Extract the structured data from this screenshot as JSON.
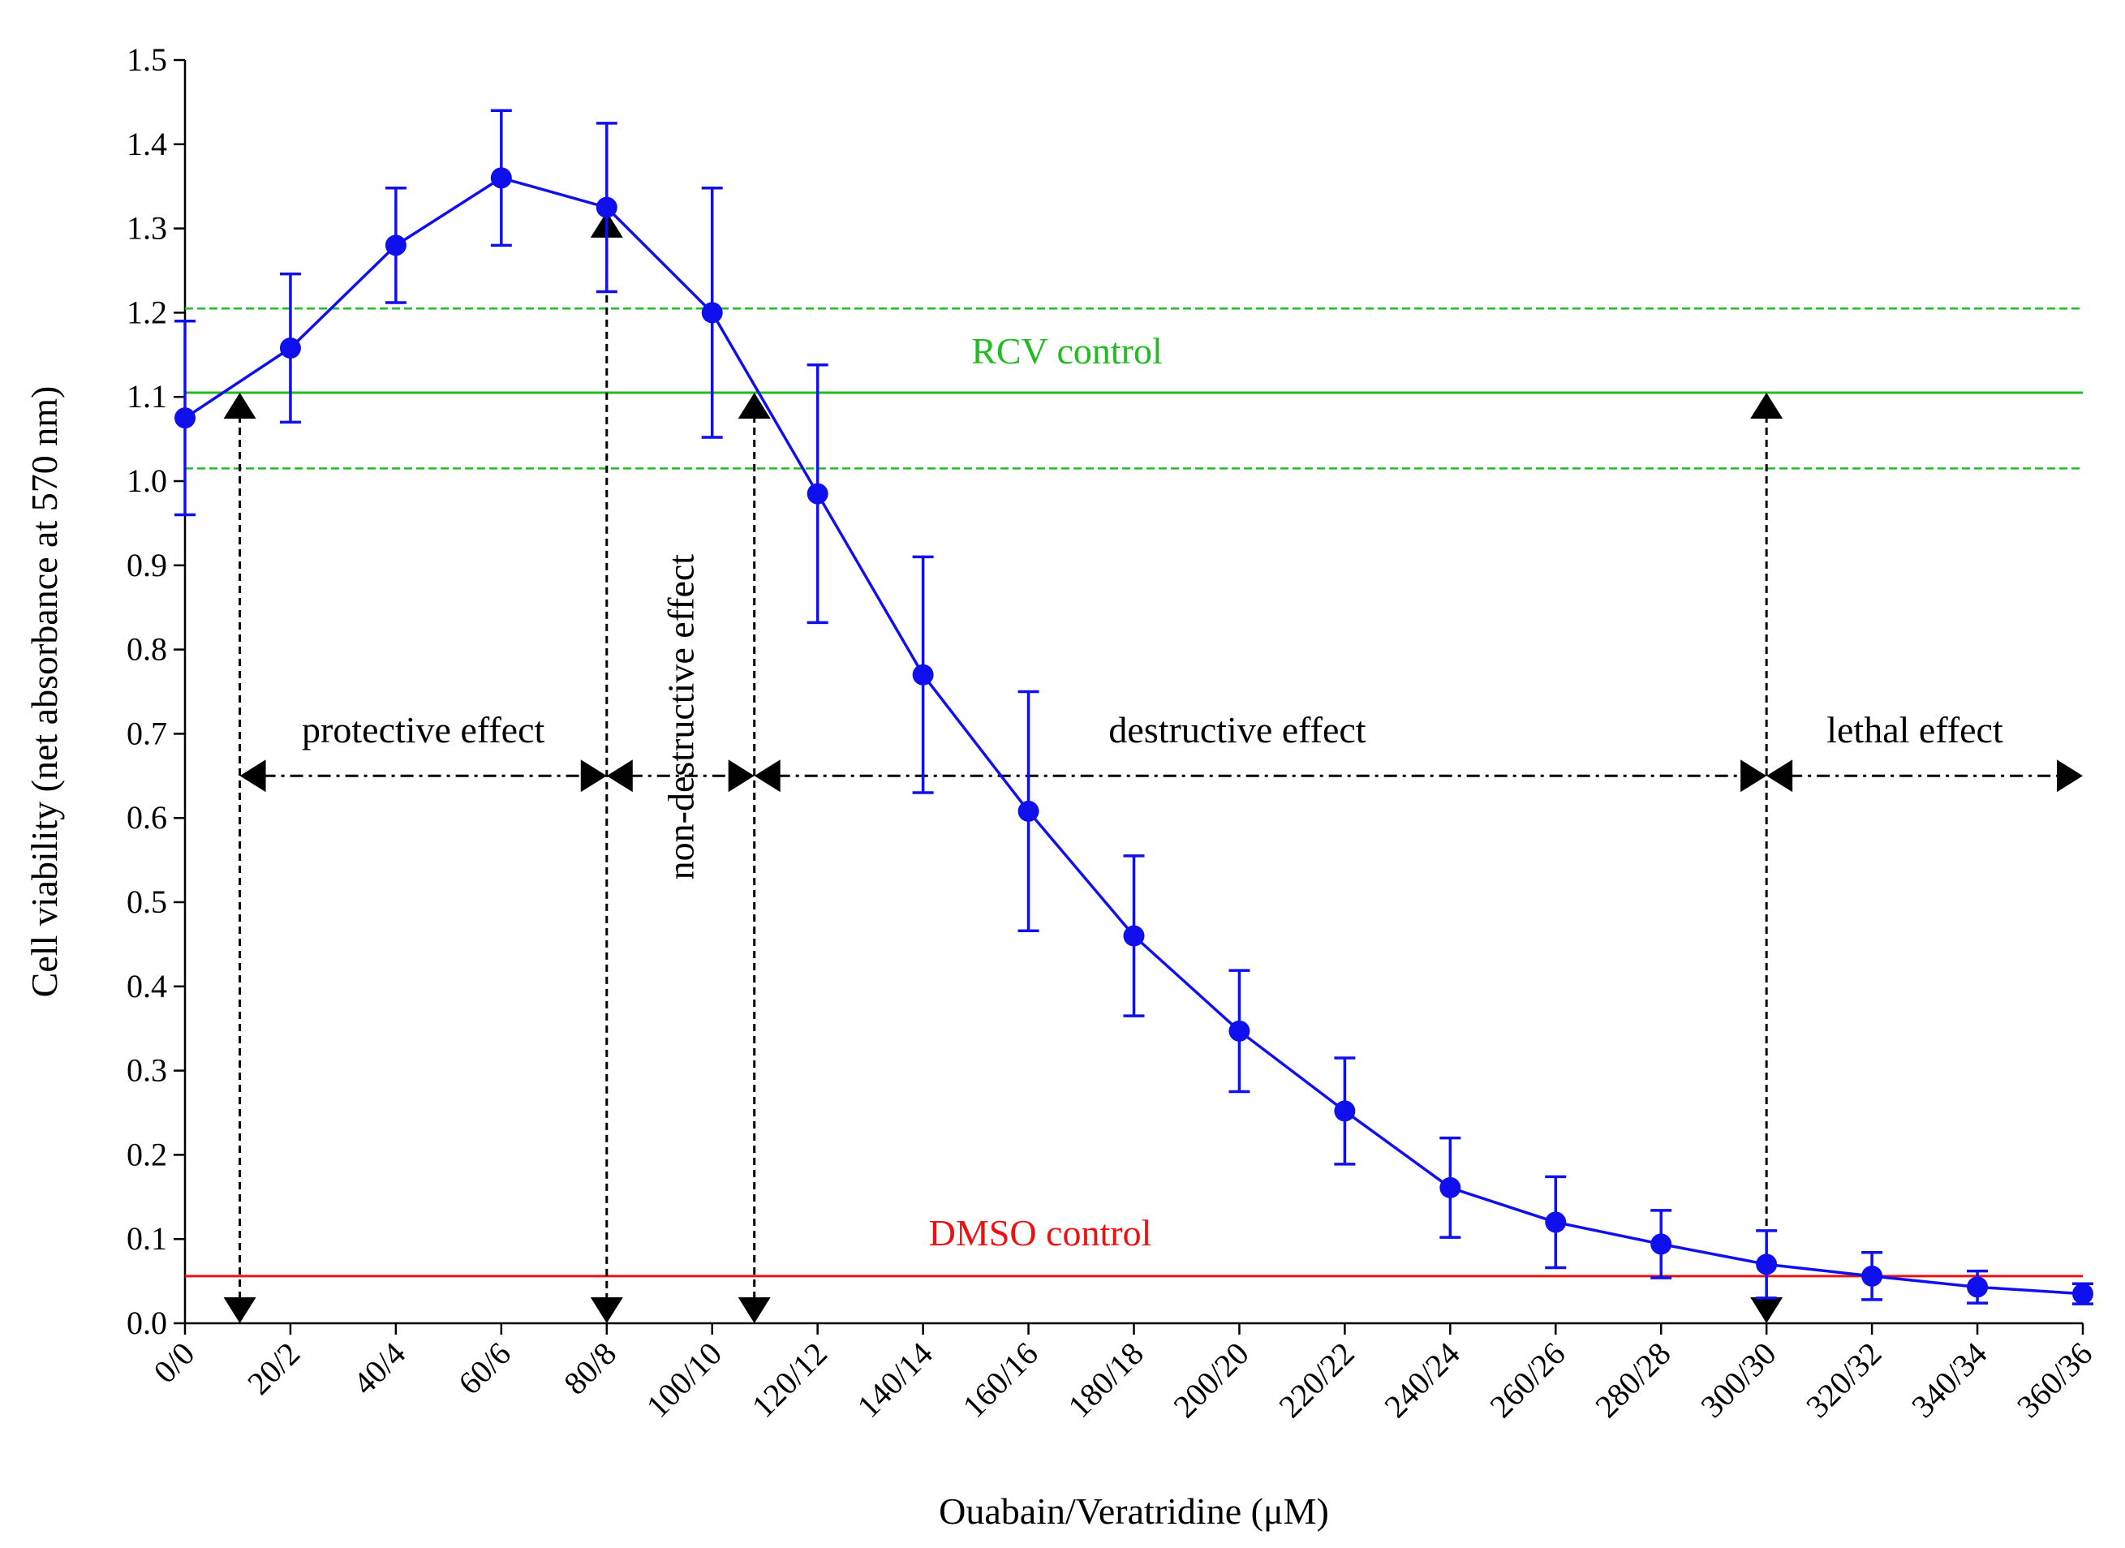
{
  "chart_data": {
    "type": "line",
    "title": "",
    "xlabel": "Ouabain/Veratridine (μM)",
    "ylabel": "Cell viability (net absorbance at 570 nm)",
    "ylim": [
      0.0,
      1.5
    ],
    "categories": [
      "0/0",
      "20/2",
      "40/4",
      "60/6",
      "80/8",
      "100/10",
      "120/12",
      "140/14",
      "160/16",
      "180/18",
      "200/20",
      "220/22",
      "240/24",
      "260/26",
      "280/28",
      "300/30",
      "320/32",
      "340/34",
      "360/36"
    ],
    "yticks": [
      "0.0",
      "0.1",
      "0.2",
      "0.3",
      "0.4",
      "0.5",
      "0.6",
      "0.7",
      "0.8",
      "0.9",
      "1.0",
      "1.1",
      "1.2",
      "1.3",
      "1.4",
      "1.5"
    ],
    "series": [
      {
        "name": "Cell viability",
        "color": "#1010ee",
        "values": [
          1.075,
          1.158,
          1.28,
          1.36,
          1.325,
          1.2,
          0.985,
          0.77,
          0.608,
          0.46,
          0.347,
          0.252,
          0.161,
          0.12,
          0.094,
          0.07,
          0.056,
          0.043,
          0.035
        ],
        "errors": [
          0.115,
          0.088,
          0.068,
          0.08,
          0.1,
          0.148,
          0.153,
          0.14,
          0.142,
          0.095,
          0.072,
          0.063,
          0.059,
          0.054,
          0.04,
          0.04,
          0.028,
          0.019,
          0.012
        ]
      }
    ],
    "reference_lines": [
      {
        "name": "RCV control",
        "color": "#22bb22",
        "value": 1.105,
        "label": "RCV control",
        "band": [
          1.015,
          1.205
        ]
      },
      {
        "name": "DMSO control",
        "color": "#ee1111",
        "value": 0.056,
        "label": "DMSO control"
      }
    ],
    "annotations": {
      "protective": "protective  effect",
      "non_destructive": "non-destructive  effect",
      "destructive": "destructive effect",
      "lethal": "lethal effect"
    }
  }
}
